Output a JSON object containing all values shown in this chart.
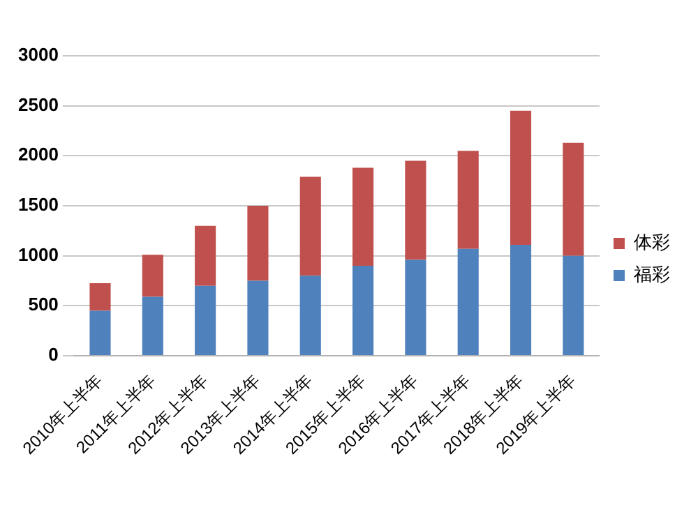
{
  "chart_data": {
    "type": "bar",
    "stacked": true,
    "categories": [
      "2010年上半年",
      "2011年上半年",
      "2012年上半年",
      "2013年上半年",
      "2014年上半年",
      "2015年上半年",
      "2016年上半年",
      "2017年上半年",
      "2018年上半年",
      "2019年上半年"
    ],
    "series": [
      {
        "name": "福彩",
        "color": "#4f81bd",
        "values": [
          450,
          590,
          700,
          750,
          800,
          900,
          960,
          1070,
          1110,
          1000
        ]
      },
      {
        "name": "体彩",
        "color": "#c0504d",
        "values": [
          275,
          420,
          600,
          750,
          990,
          980,
          990,
          980,
          1340,
          1130
        ]
      }
    ],
    "ylim": [
      0,
      3000
    ],
    "yticks": [
      0,
      500,
      1000,
      1500,
      2000,
      2500,
      3000
    ],
    "grid": "y",
    "legend": "right"
  }
}
